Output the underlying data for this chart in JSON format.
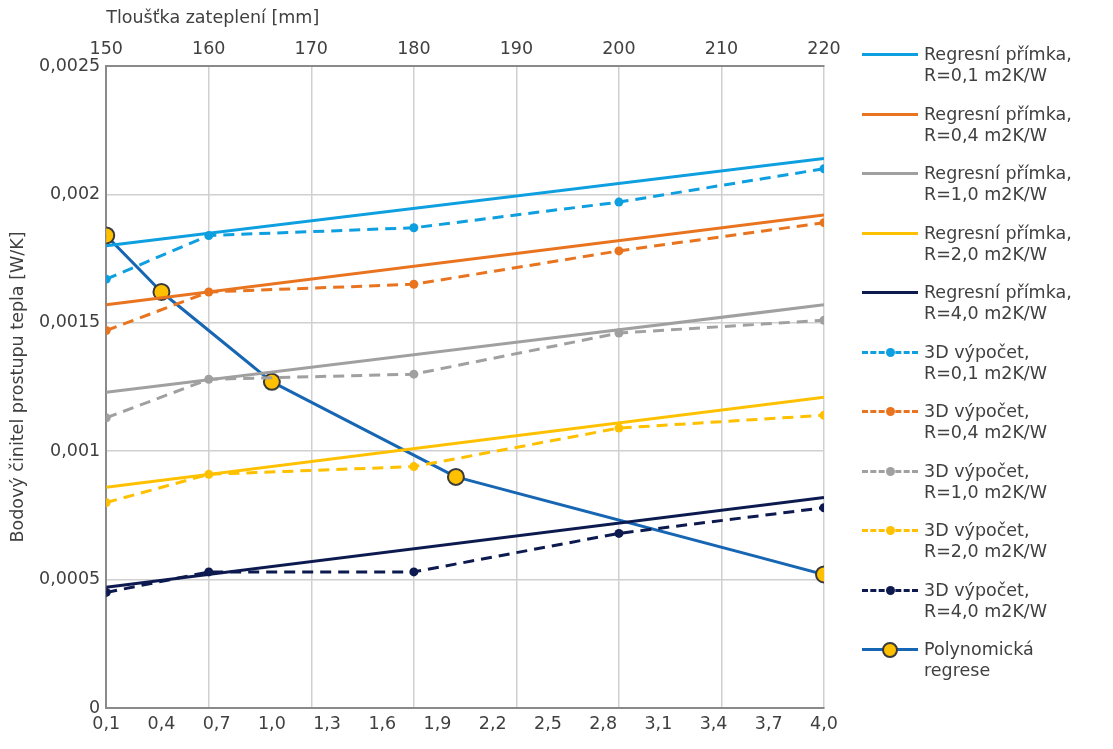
{
  "chart_data": {
    "type": "line",
    "x2label": "Tloušťka zateplení [mm]",
    "ylabel": "Bodový činitel prostupu tepla [W/K]",
    "xlim": [
      0.1,
      4.0
    ],
    "xticks": [
      {
        "value": 0.1,
        "label": "0,1"
      },
      {
        "value": 0.4,
        "label": "0,4"
      },
      {
        "value": 0.7,
        "label": "0,7"
      },
      {
        "value": 1.0,
        "label": "1,0"
      },
      {
        "value": 1.3,
        "label": "1,3"
      },
      {
        "value": 1.6,
        "label": "1,6"
      },
      {
        "value": 1.9,
        "label": "1,9"
      },
      {
        "value": 2.2,
        "label": "2,2"
      },
      {
        "value": 2.5,
        "label": "2,5"
      },
      {
        "value": 2.8,
        "label": "2,8"
      },
      {
        "value": 3.1,
        "label": "3,1"
      },
      {
        "value": 3.4,
        "label": "3,4"
      },
      {
        "value": 3.7,
        "label": "3,7"
      },
      {
        "value": 4.0,
        "label": "4,0"
      }
    ],
    "x2lim": [
      150,
      220
    ],
    "x2ticks": [
      150,
      160,
      170,
      180,
      190,
      200,
      210,
      220
    ],
    "ylim": [
      0,
      0.0025
    ],
    "yticks": [
      0,
      {
        "value": 0.0005,
        "label": "0,0005"
      },
      {
        "value": 0.001,
        "label": "0,001"
      },
      {
        "value": 0.0015,
        "label": "0,0015"
      },
      {
        "value": 0.002,
        "label": "0,002"
      },
      {
        "value": 0.0025,
        "label": "0,0025"
      }
    ],
    "grid": true,
    "legend": "right",
    "series": [
      {
        "name": "Regresní přímka, R=0,1 m2K/W",
        "color": "#0e9fe0",
        "axis": "x2",
        "x": [
          150,
          220
        ],
        "values": [
          0.0018,
          0.00214
        ],
        "line_style": "solid",
        "marker": "none"
      },
      {
        "name": "Regresní přímka, R=0,4 m2K/W",
        "color": "#e8741f",
        "axis": "x2",
        "x": [
          150,
          220
        ],
        "values": [
          0.00157,
          0.00192
        ],
        "line_style": "solid",
        "marker": "none"
      },
      {
        "name": "Regresní přímka, R=1,0 m2K/W",
        "color": "#a0a0a0",
        "axis": "x2",
        "x": [
          150,
          220
        ],
        "values": [
          0.00123,
          0.00157
        ],
        "line_style": "solid",
        "marker": "none"
      },
      {
        "name": "Regresní přímka, R=2,0 m2K/W",
        "color": "#ffc000",
        "axis": "x2",
        "x": [
          150,
          220
        ],
        "values": [
          0.00086,
          0.00121
        ],
        "line_style": "solid",
        "marker": "none"
      },
      {
        "name": "Regresní přímka, R=4,0 m2K/W",
        "color": "#0d1a4f",
        "axis": "x2",
        "x": [
          150,
          220
        ],
        "values": [
          0.00047,
          0.00082
        ],
        "line_style": "solid",
        "marker": "none"
      },
      {
        "name": "3D výpočet, R=0,1 m2K/W",
        "color": "#0e9fe0",
        "axis": "x2",
        "x": [
          150,
          160,
          180,
          200,
          220
        ],
        "values": [
          0.00167,
          0.00184,
          0.00187,
          0.00197,
          0.0021
        ],
        "line_style": "dashed",
        "marker": "circle"
      },
      {
        "name": "3D výpočet, R=0,4 m2K/W",
        "color": "#e8741f",
        "axis": "x2",
        "x": [
          150,
          160,
          180,
          200,
          220
        ],
        "values": [
          0.00147,
          0.00162,
          0.00165,
          0.00178,
          0.00189
        ],
        "line_style": "dashed",
        "marker": "circle"
      },
      {
        "name": "3D výpočet, R=1,0 m2K/W",
        "color": "#a0a0a0",
        "axis": "x2",
        "x": [
          150,
          160,
          180,
          200,
          220
        ],
        "values": [
          0.00113,
          0.00128,
          0.0013,
          0.00146,
          0.00151
        ],
        "line_style": "dashed",
        "marker": "circle"
      },
      {
        "name": "3D výpočet, R=2,0 m2K/W",
        "color": "#ffc000",
        "axis": "x2",
        "x": [
          150,
          160,
          180,
          200,
          220
        ],
        "values": [
          0.0008,
          0.00091,
          0.00094,
          0.00109,
          0.00114
        ],
        "line_style": "dashed",
        "marker": "circle"
      },
      {
        "name": "3D výpočet, R=4,0 m2K/W",
        "color": "#0d1a4f",
        "axis": "x2",
        "x": [
          150,
          160,
          180,
          200,
          220
        ],
        "values": [
          0.00045,
          0.00053,
          0.00053,
          0.00068,
          0.00078
        ],
        "line_style": "dashed",
        "marker": "circle"
      },
      {
        "name": "Polynomická regrese",
        "color": "#1766b4",
        "colors": [
          "#ffc000",
          "#ffc000",
          "#ffc000",
          "#ffc000",
          "#ffc000"
        ],
        "x": [
          0.1,
          0.4,
          1.0,
          2.0,
          4.0
        ],
        "values": [
          0.00184,
          0.00162,
          0.00127,
          0.0009,
          0.00052
        ],
        "line_style": "solid",
        "marker": "circle"
      }
    ]
  }
}
